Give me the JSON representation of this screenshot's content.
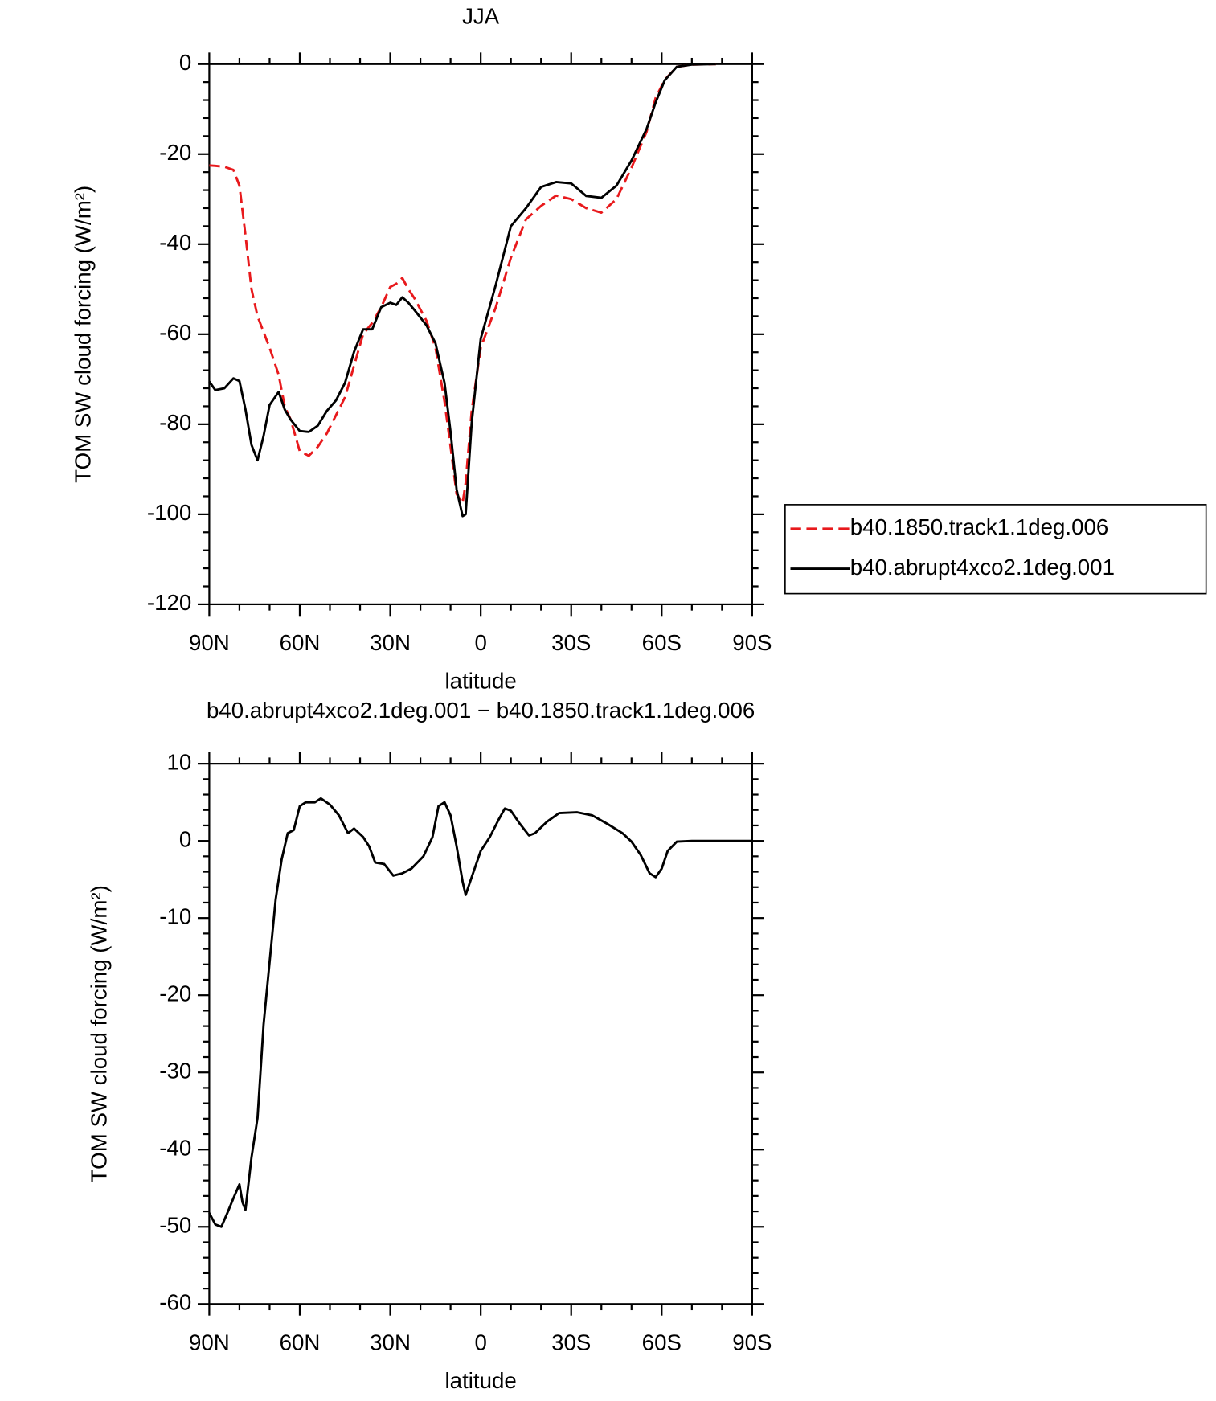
{
  "chart_data": [
    {
      "type": "line",
      "title": "JJA",
      "xlabel": "latitude",
      "ylabel": "TOM SW cloud forcing (W/m²)",
      "x": [
        90,
        88,
        85,
        82,
        80,
        78,
        76,
        74,
        72,
        70,
        67,
        65,
        63,
        60,
        57,
        54,
        51,
        48,
        45,
        42,
        39,
        36,
        33,
        30,
        28,
        26,
        24,
        22,
        18,
        15,
        12,
        10,
        8,
        6,
        5,
        3,
        0,
        -5,
        -10,
        -15,
        -20,
        -25,
        -30,
        -35,
        -40,
        -45,
        -50,
        -55,
        -58,
        -61,
        -65,
        -70,
        -78
      ],
      "series": [
        {
          "name": "b40.1850.track1.1deg.006",
          "color": "#e8191c",
          "dash": "dashed",
          "values": [
            -22.5,
            -22.6,
            -22.8,
            -23.5,
            -27,
            -38,
            -50,
            -56,
            -59.5,
            -63,
            -69,
            -76,
            -79,
            -86,
            -87,
            -85,
            -82,
            -78,
            -74,
            -67,
            -60,
            -57.5,
            -54,
            -49.5,
            -48.8,
            -47.5,
            -50,
            -52,
            -57,
            -63,
            -75,
            -85,
            -95.5,
            -97.5,
            -93,
            -77,
            -63,
            -54,
            -43,
            -34.5,
            -31.5,
            -29.2,
            -30,
            -32,
            -33,
            -30,
            -23,
            -15,
            -7.5,
            -3.5,
            -0.6,
            -0.1,
            0
          ]
        },
        {
          "name": "b40.abrupt4xco2.1deg.001",
          "color": "#000000",
          "dash": "solid",
          "values": [
            -70.5,
            -72.4,
            -72,
            -69.8,
            -70.4,
            -76.7,
            -84.6,
            -88,
            -82.6,
            -75.7,
            -72.8,
            -76.7,
            -79,
            -81.5,
            -81.7,
            -80.3,
            -77,
            -74.7,
            -70.8,
            -63.9,
            -58.9,
            -58.9,
            -54,
            -53,
            -53.5,
            -51.8,
            -53,
            -54.6,
            -58,
            -62,
            -70.8,
            -81.7,
            -94.5,
            -100.4,
            -100,
            -79.7,
            -61,
            -49,
            -36,
            -32,
            -27.3,
            -26.2,
            -26.5,
            -29.3,
            -29.7,
            -27,
            -21.4,
            -14.4,
            -8.5,
            -3.6,
            -0.6,
            -0.1,
            0
          ]
        }
      ],
      "xlim": [
        90,
        -90
      ],
      "xticks": [
        {
          "value": 90,
          "label": "90N"
        },
        {
          "value": 60,
          "label": "60N"
        },
        {
          "value": 30,
          "label": "30N"
        },
        0,
        {
          "value": -30,
          "label": "30S"
        },
        {
          "value": -60,
          "label": "60S"
        },
        {
          "value": -90,
          "label": "90S"
        }
      ],
      "ylim": [
        -120,
        0
      ],
      "yticks": [
        0,
        -20,
        -40,
        -60,
        -80,
        -100,
        -120
      ],
      "legend": "outside-right"
    },
    {
      "type": "line",
      "title": "b40.abrupt4xco2.1deg.001 − b40.1850.track1.1deg.006",
      "xlabel": "latitude",
      "ylabel": "TOM SW cloud forcing (W/m²)",
      "x": [
        90,
        88,
        86,
        84,
        82,
        80,
        79,
        78,
        76,
        74,
        72,
        70,
        68,
        66,
        64,
        62,
        60,
        58,
        55,
        53,
        50,
        47,
        44,
        42,
        39,
        37,
        35,
        32,
        29,
        26,
        23,
        19,
        16,
        14,
        12,
        10,
        8,
        6,
        5,
        3,
        0,
        -3,
        -6,
        -8,
        -10,
        -13,
        -16,
        -18,
        -22,
        -26,
        -32,
        -37,
        -42,
        -47,
        -50,
        -53,
        -56,
        -58,
        -60,
        -62,
        -65,
        -70,
        -90
      ],
      "series": [
        {
          "color": "#000000",
          "dash": "solid",
          "values": [
            -48.2,
            -49.7,
            -50,
            -48.2,
            -46.3,
            -44.5,
            -46.8,
            -47.8,
            -41,
            -35.9,
            -23.8,
            -15.7,
            -7.6,
            -2.4,
            1,
            1.4,
            4.5,
            5,
            5,
            5.5,
            4.7,
            3.3,
            1,
            1.6,
            0.5,
            -0.7,
            -2.8,
            -3,
            -4.5,
            -4.2,
            -3.6,
            -2,
            0.5,
            4.5,
            5,
            3.3,
            -0.7,
            -5.3,
            -7,
            -4.7,
            -1.3,
            0.5,
            2.8,
            4.2,
            3.9,
            2.2,
            0.7,
            1,
            2.5,
            3.6,
            3.7,
            3.3,
            2.2,
            1,
            -0.1,
            -1.8,
            -4.2,
            -4.7,
            -3.6,
            -1.3,
            -0.1,
            0,
            0
          ]
        }
      ],
      "xlim": [
        90,
        -90
      ],
      "xticks": [
        {
          "value": 90,
          "label": "90N"
        },
        {
          "value": 60,
          "label": "60N"
        },
        {
          "value": 30,
          "label": "30N"
        },
        0,
        {
          "value": -30,
          "label": "30S"
        },
        {
          "value": -60,
          "label": "60S"
        },
        {
          "value": -90,
          "label": "90S"
        }
      ],
      "ylim": [
        -60,
        10
      ],
      "yticks": [
        10,
        0,
        -10,
        -20,
        -30,
        -40,
        -50,
        -60
      ]
    }
  ]
}
